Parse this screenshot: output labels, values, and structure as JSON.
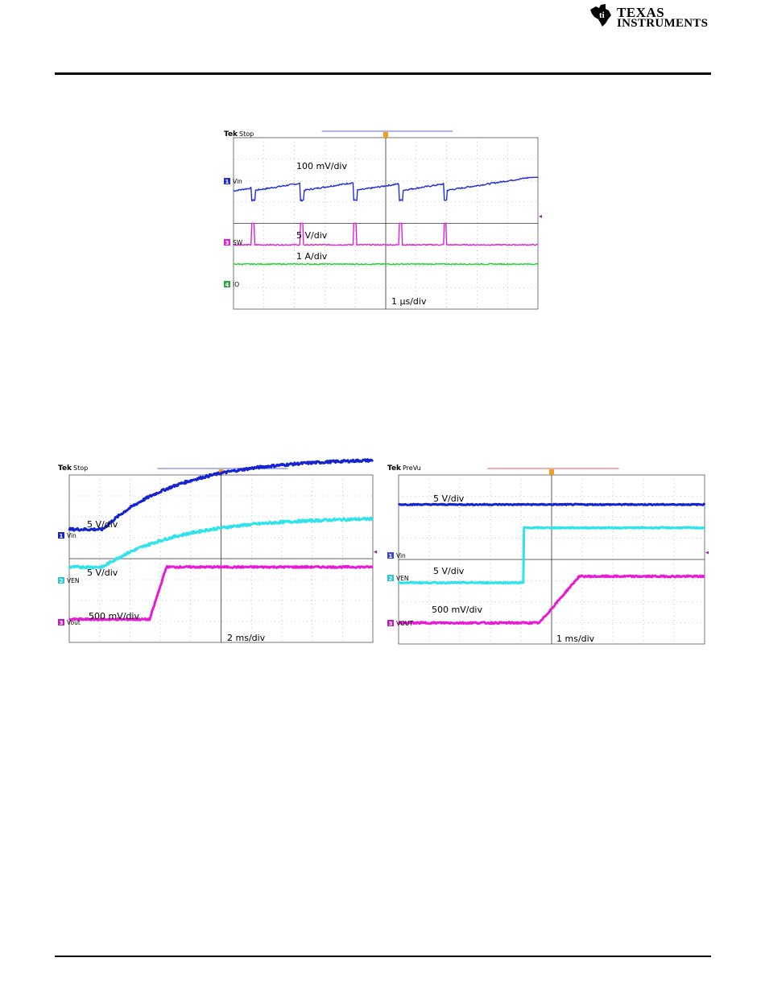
{
  "header": {
    "logo_line1": "Texas",
    "logo_line2": "Instruments"
  },
  "chart_data": [
    {
      "type": "line",
      "brand": "Tek",
      "status": "Stop",
      "timebase": "1 µs/div",
      "divisions": {
        "x": 10,
        "y": 8
      },
      "series": [
        {
          "channel": "1",
          "name": "Vin",
          "scale": "100 mV/div",
          "color": "#1f2fd6",
          "kind": "ripple",
          "note": "sawtooth ripple ~0.5 div p-p, sharp dips at each switching event"
        },
        {
          "channel": "3",
          "name": "SW",
          "scale": "5 V/div",
          "color": "#e020d8",
          "kind": "pulse",
          "pulse_times_div": [
            0.6,
            2.2,
            3.95,
            5.45,
            6.9
          ]
        },
        {
          "channel": "4",
          "name": "IO",
          "scale": "1 A/div",
          "color": "#19d42a",
          "kind": "flat"
        }
      ],
      "ch_colors": {
        "1": "#1f2fd6",
        "3": "#e020d8",
        "4": "#2fa53a"
      }
    },
    {
      "type": "line",
      "brand": "Tek",
      "status": "Stop",
      "timebase": "2 ms/div",
      "divisions": {
        "x": 10,
        "y": 8
      },
      "series": [
        {
          "channel": "1",
          "name": "Vin",
          "scale": "5 V/div",
          "color": "#1524d0",
          "kind": "exp_rise",
          "rise_div": 3.3
        },
        {
          "channel": "2",
          "name": "VEN",
          "scale": "5 V/div",
          "color": "#2ee3ea",
          "kind": "exp_rise",
          "rise_div": 2.3
        },
        {
          "channel": "3",
          "name": "Vout",
          "scale": "500 mV/div",
          "color": "#e81ad6",
          "kind": "ramp",
          "rise_div": 2.1
        }
      ],
      "ch_colors": {
        "1": "#1524d0",
        "2": "#24c8d8",
        "3": "#c21abf"
      }
    },
    {
      "type": "line",
      "brand": "Tek",
      "status": "PreVu",
      "timebase": "1 ms/div",
      "divisions": {
        "x": 10,
        "y": 8
      },
      "series": [
        {
          "channel": "1",
          "name": "Vin",
          "scale": "5 V/div",
          "color": "#1524d0",
          "kind": "flat",
          "level_div": 6.6
        },
        {
          "channel": "2",
          "name": "VEN",
          "scale": "5 V/div",
          "color": "#2ee3ea",
          "kind": "step",
          "step_time_div": 4.1,
          "low_div": 2.9,
          "high_div": 5.5
        },
        {
          "channel": "3",
          "name": "VOUT",
          "scale": "500 mV/div",
          "color": "#e81ad6",
          "kind": "ramp",
          "start_time_div": 4.6,
          "end_time_div": 5.9,
          "low_div": 1.0,
          "high_div": 3.2
        }
      ],
      "ch_colors": {
        "1": "#3a48c8",
        "2": "#24c8d8",
        "3": "#c21abf"
      }
    }
  ]
}
